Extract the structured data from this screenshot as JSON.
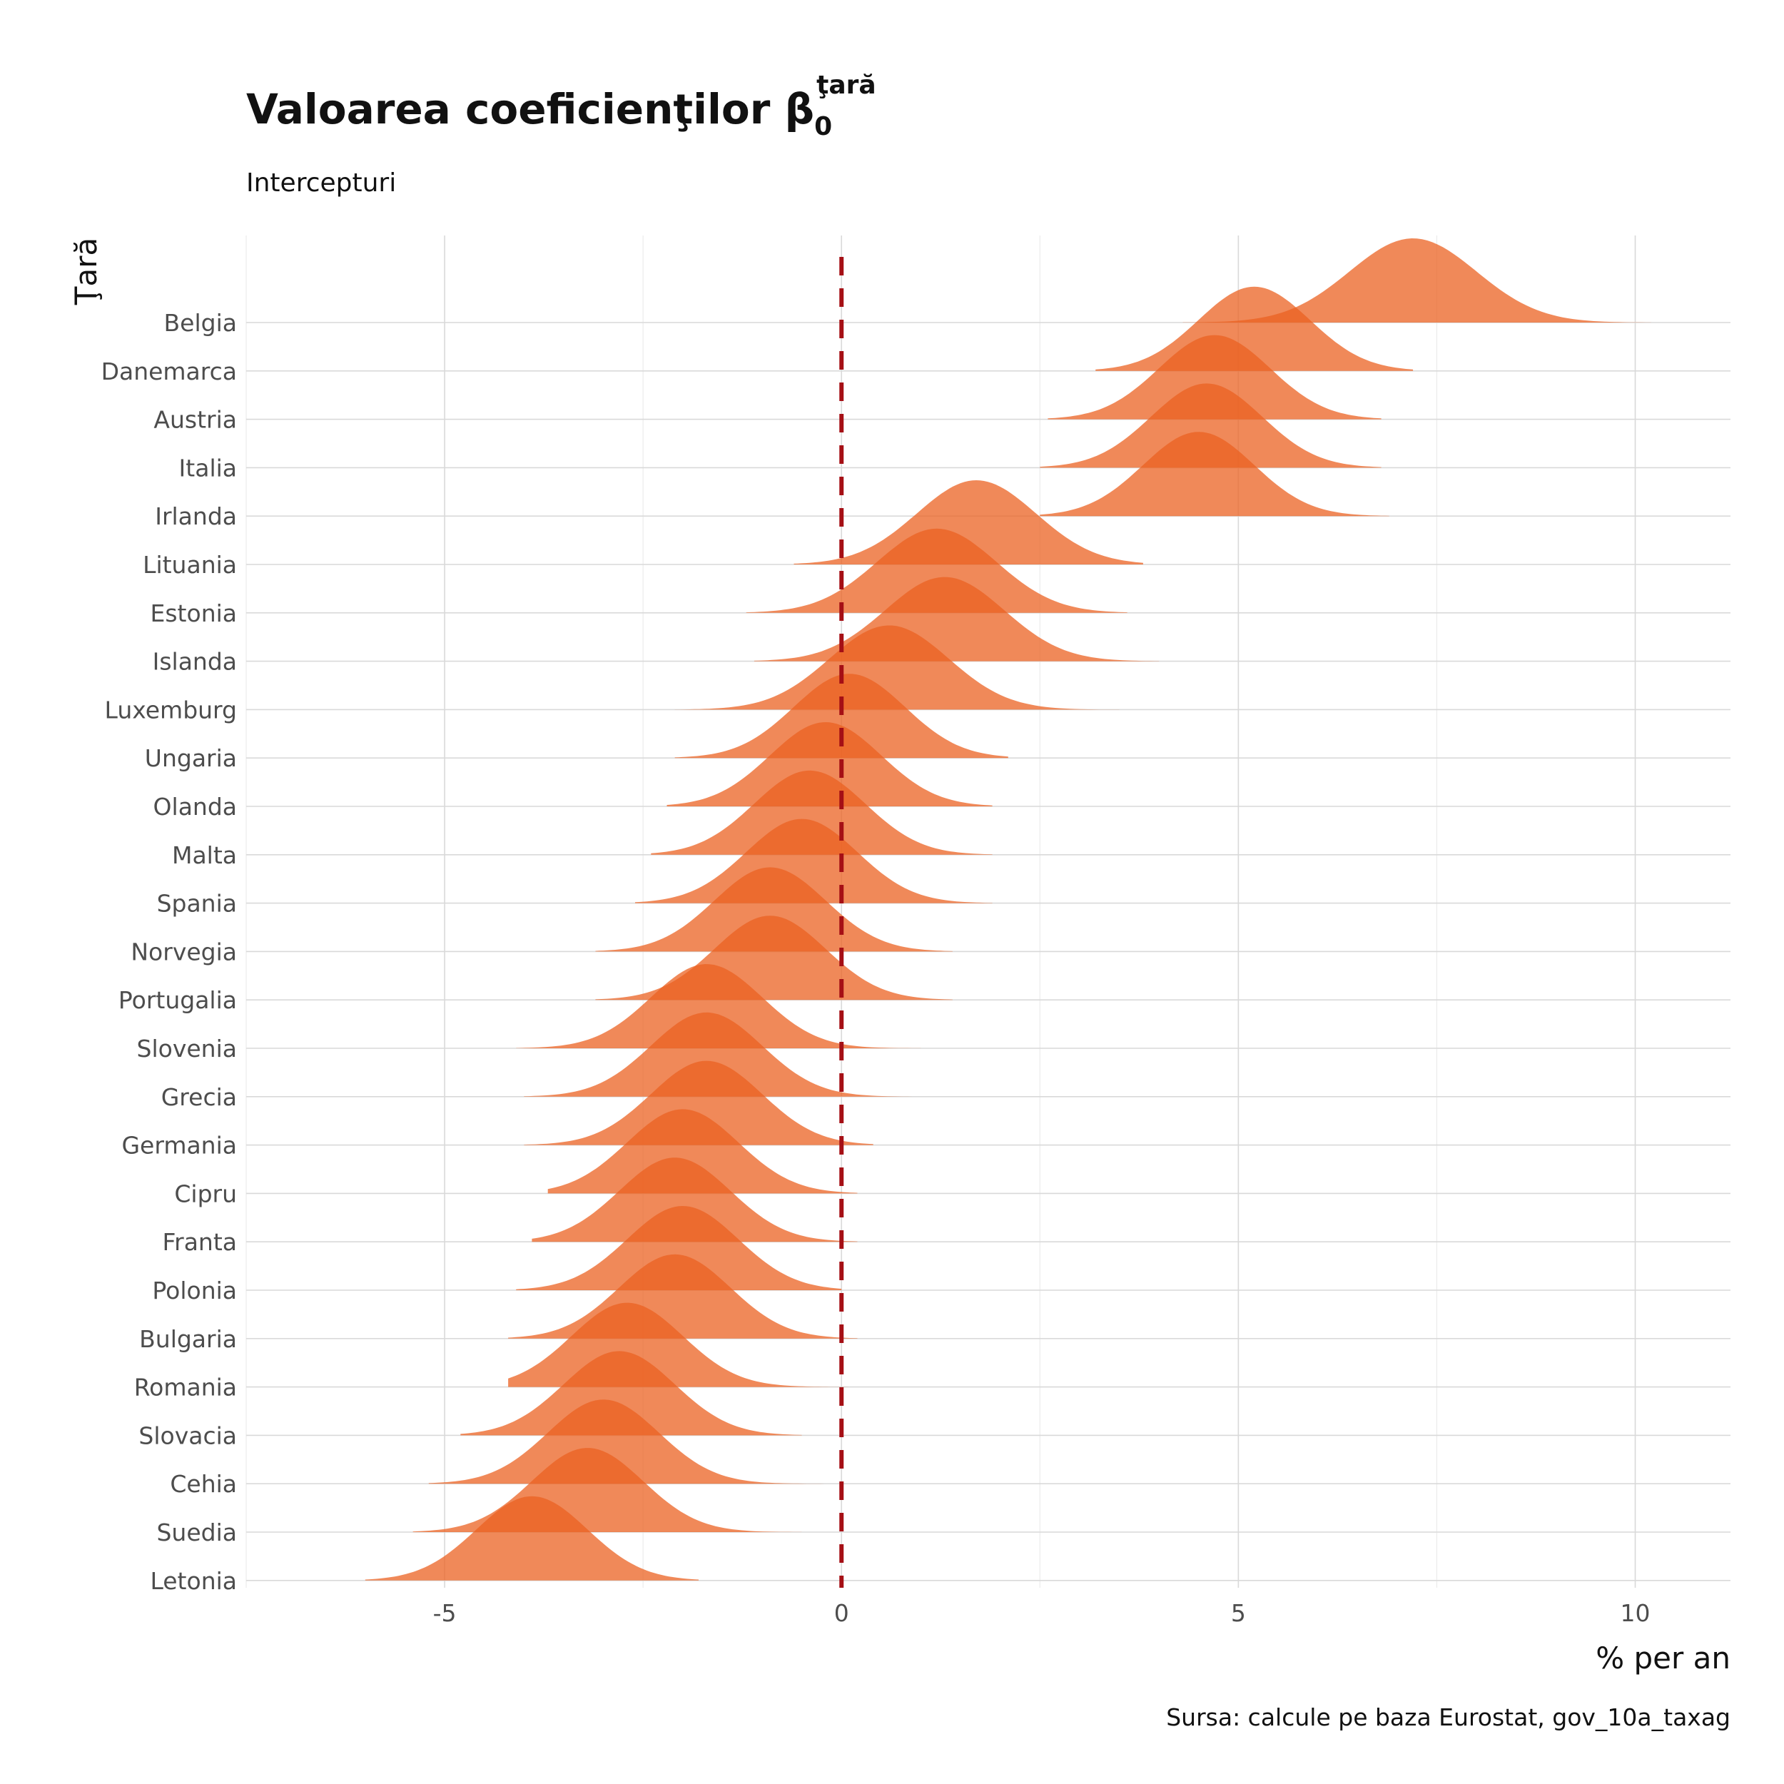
{
  "chart_data": {
    "type": "ridgeline",
    "title": "Valoarea coeficienţilor β",
    "title_subscript": "0",
    "title_superscript": "ţară",
    "subtitle": "Intercepturi",
    "xlabel": "% per an",
    "ylabel": "Ţară",
    "caption": "Sursa: calcule pe baza Eurostat, gov_10a_taxag",
    "xlim": [
      -7.5,
      11.2
    ],
    "xticks": [
      -5,
      0,
      5,
      10
    ],
    "xtick_labels": [
      "-5",
      "0",
      "5",
      "10"
    ],
    "grid": true,
    "reference_line": {
      "x": 0,
      "style": "dashed",
      "color": "#a50f15"
    },
    "fill_color": "#eb6221",
    "fill_opacity": 0.75,
    "series": [
      {
        "name": "Belgia",
        "mean": 7.2,
        "sd": 0.8,
        "min": 4.3,
        "max": 10.2
      },
      {
        "name": "Danemarca",
        "mean": 5.2,
        "sd": 0.7,
        "min": 3.2,
        "max": 7.2
      },
      {
        "name": "Austria",
        "mean": 4.7,
        "sd": 0.7,
        "min": 2.6,
        "max": 6.8
      },
      {
        "name": "Italia",
        "mean": 4.6,
        "sd": 0.7,
        "min": 2.5,
        "max": 6.8
      },
      {
        "name": "Irlanda",
        "mean": 4.5,
        "sd": 0.7,
        "min": 2.5,
        "max": 6.9
      },
      {
        "name": "Lituania",
        "mean": 1.7,
        "sd": 0.75,
        "min": -0.6,
        "max": 3.8
      },
      {
        "name": "Estonia",
        "mean": 1.2,
        "sd": 0.75,
        "min": -1.2,
        "max": 3.6
      },
      {
        "name": "Islanda",
        "mean": 1.3,
        "sd": 0.75,
        "min": -1.1,
        "max": 4.0
      },
      {
        "name": "Luxemburg",
        "mean": 0.6,
        "sd": 0.75,
        "min": -2.1,
        "max": 3.5
      },
      {
        "name": "Ungaria",
        "mean": 0.1,
        "sd": 0.7,
        "min": -2.1,
        "max": 2.1
      },
      {
        "name": "Olanda",
        "mean": -0.2,
        "sd": 0.7,
        "min": -2.2,
        "max": 1.9
      },
      {
        "name": "Malta",
        "mean": -0.4,
        "sd": 0.7,
        "min": -2.4,
        "max": 1.9
      },
      {
        "name": "Spania",
        "mean": -0.5,
        "sd": 0.7,
        "min": -2.6,
        "max": 1.9
      },
      {
        "name": "Norvegia",
        "mean": -0.9,
        "sd": 0.7,
        "min": -3.1,
        "max": 1.4
      },
      {
        "name": "Portugalia",
        "mean": -0.9,
        "sd": 0.7,
        "min": -3.1,
        "max": 1.4
      },
      {
        "name": "Slovenia",
        "mean": -1.7,
        "sd": 0.7,
        "min": -4.1,
        "max": 1.0
      },
      {
        "name": "Grecia",
        "mean": -1.7,
        "sd": 0.7,
        "min": -4.0,
        "max": 1.8
      },
      {
        "name": "Germania",
        "mean": -1.7,
        "sd": 0.7,
        "min": -4.0,
        "max": 0.4
      },
      {
        "name": "Cipru",
        "mean": -2.0,
        "sd": 0.7,
        "min": -3.7,
        "max": 0.2
      },
      {
        "name": "Franta",
        "mean": -2.1,
        "sd": 0.7,
        "min": -3.9,
        "max": 0.2
      },
      {
        "name": "Polonia",
        "mean": -2.0,
        "sd": 0.7,
        "min": -4.1,
        "max": 0.0
      },
      {
        "name": "Bulgaria",
        "mean": -2.1,
        "sd": 0.7,
        "min": -4.2,
        "max": 0.2
      },
      {
        "name": "Romania",
        "mean": -2.7,
        "sd": 0.7,
        "min": -4.2,
        "max": 0.2
      },
      {
        "name": "Slovacia",
        "mean": -2.8,
        "sd": 0.7,
        "min": -4.8,
        "max": -0.5
      },
      {
        "name": "Cehia",
        "mean": -3.0,
        "sd": 0.7,
        "min": -5.2,
        "max": -0.1
      },
      {
        "name": "Suedia",
        "mean": -3.2,
        "sd": 0.7,
        "min": -5.4,
        "max": -0.5
      },
      {
        "name": "Letonia",
        "mean": -3.9,
        "sd": 0.7,
        "min": -6.0,
        "max": -1.8
      }
    ]
  }
}
